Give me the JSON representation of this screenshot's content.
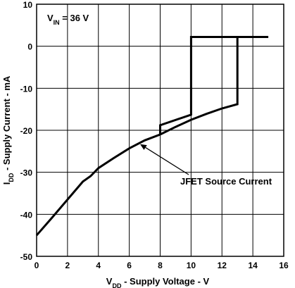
{
  "chart_data": {
    "type": "line",
    "xlabel": {
      "main": "V",
      "sub": "DD",
      "rest": " - Supply Voltage - V"
    },
    "ylabel": {
      "main": "I",
      "sub": "DD",
      "rest": " - Supply Current - mA"
    },
    "xlim": [
      0,
      16
    ],
    "ylim": [
      -50,
      10
    ],
    "xticks": [
      0,
      2,
      4,
      6,
      8,
      10,
      12,
      14,
      16
    ],
    "yticks": [
      -50,
      -40,
      -30,
      -20,
      -10,
      0,
      10
    ],
    "x_tick_labels": [
      "0",
      "2",
      "4",
      "6",
      "8",
      "10",
      "12",
      "14",
      "16"
    ],
    "y_tick_labels": [
      "-50",
      "-40",
      "-30",
      "-20",
      "-10",
      "0",
      "10"
    ],
    "grid": true,
    "condition": {
      "main": "V",
      "sub": "IN",
      "rest": " = 36 V"
    },
    "annotation": {
      "text": "JFET Source Current",
      "target_x": 6.7,
      "target_y": -23.3
    },
    "series": [
      {
        "points": [
          [
            0,
            -45
          ],
          [
            1,
            -40.8
          ],
          [
            2,
            -36.5
          ],
          [
            3,
            -32.2
          ],
          [
            3.5,
            -30.9
          ],
          [
            4,
            -29
          ],
          [
            5,
            -26.6
          ],
          [
            6,
            -24.3
          ],
          [
            7,
            -22.4
          ],
          [
            8,
            -21
          ],
          [
            9,
            -19.2
          ],
          [
            10,
            -17.5
          ],
          [
            11,
            -16.1
          ],
          [
            12,
            -14.8
          ],
          [
            13,
            -13.8
          ],
          [
            13,
            2.2
          ],
          [
            10,
            2.2
          ],
          [
            10,
            -16.3
          ],
          [
            8,
            -18.8
          ],
          [
            8,
            -21
          ],
          [
            8,
            -18.8
          ],
          [
            10,
            -16.3
          ],
          [
            10,
            2.2
          ],
          [
            13,
            2.2
          ],
          [
            15,
            2.2
          ]
        ]
      }
    ]
  }
}
